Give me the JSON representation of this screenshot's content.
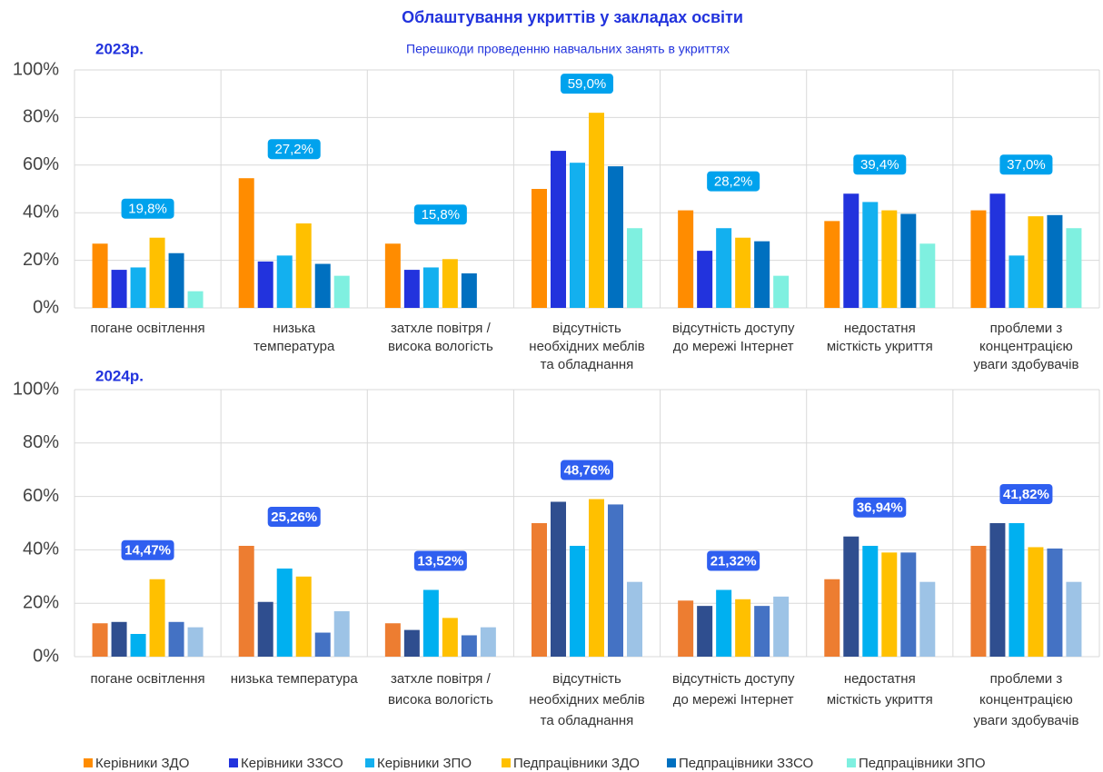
{
  "chart_data": [
    {
      "type": "bar",
      "title": "Облаштування укриттів у закладах освіти",
      "subtitle": "Перешкоди проведенню навчальних занять в укриттях",
      "label": "2023р.",
      "categories": [
        [
          "погане освітлення"
        ],
        [
          "низька",
          "температура"
        ],
        [
          "затхле повітря /",
          "висока вологість"
        ],
        [
          "відсутність",
          "необхідних меблів",
          "та обладнання"
        ],
        [
          "відсутність доступу",
          "до мережі Інтернет"
        ],
        [
          "недостатня",
          "місткість укриття"
        ],
        [
          "проблеми з",
          "концентрацією",
          "уваги здобувачів"
        ]
      ],
      "series": [
        {
          "name": "Керівники ЗДО",
          "color": "#ff8c00",
          "values": [
            27,
            54.5,
            27,
            50,
            41,
            36.5,
            41
          ]
        },
        {
          "name": "Керівники ЗЗСО",
          "color": "#2233dd",
          "values": [
            16,
            19.5,
            16,
            66,
            24,
            48,
            48
          ]
        },
        {
          "name": "Керівники ЗПО",
          "color": "#13b0ef",
          "values": [
            17,
            22,
            17,
            61,
            33.5,
            44.5,
            22
          ]
        },
        {
          "name": "Педпрацівники ЗДО",
          "color": "#ffc000",
          "values": [
            29.5,
            35.5,
            20.5,
            82,
            29.5,
            41,
            38.5
          ]
        },
        {
          "name": "Педпрацівники ЗЗСО",
          "color": "#0070c0",
          "values": [
            23,
            18.5,
            14.5,
            59.5,
            28,
            39.5,
            39
          ]
        },
        {
          "name": "Педпрацівники ЗПО",
          "color": "#7ff0e0",
          "values": [
            7,
            13.5,
            null,
            33.5,
            13.5,
            27,
            33.5
          ]
        }
      ],
      "averages": [
        19.8,
        27.2,
        15.8,
        59.0,
        28.2,
        39.4,
        37.0
      ],
      "average_labels": [
        "19,8%",
        "27,2%",
        "15,8%",
        "59,0%",
        "28,2%",
        "39,4%",
        "37,0%"
      ],
      "average_color": "#00a2ed",
      "ylim": [
        0,
        100
      ],
      "yticks": [
        {
          "value": 0,
          "label": "0%"
        },
        {
          "value": 20,
          "label": "20%"
        },
        {
          "value": 40,
          "label": "40%"
        },
        {
          "value": 60,
          "label": "60%"
        },
        {
          "value": 80,
          "label": "80%"
        },
        {
          "value": 100,
          "label": "100%"
        }
      ],
      "grid": true
    },
    {
      "type": "bar",
      "label": "2024р.",
      "categories": [
        [
          "погане освітлення"
        ],
        [
          "низька температура"
        ],
        [
          "затхле повітря /",
          "висока вологість"
        ],
        [
          "відсутність",
          "необхідних меблів",
          "та обладнання"
        ],
        [
          "відсутність доступу",
          "до мережі Інтернет"
        ],
        [
          "недостатня",
          "місткість укриття"
        ],
        [
          "проблеми з",
          "концентрацією",
          "уваги здобувачів"
        ]
      ],
      "series": [
        {
          "color": "#ed7d31",
          "values": [
            12.5,
            41.5,
            12.5,
            50,
            21,
            29,
            41.5
          ]
        },
        {
          "color": "#2f4e8f",
          "values": [
            13,
            20.5,
            10,
            58,
            19,
            45,
            50
          ]
        },
        {
          "color": "#00b0f0",
          "values": [
            8.5,
            33,
            25,
            41.5,
            25,
            41.5,
            50
          ]
        },
        {
          "color": "#ffc000",
          "values": [
            29,
            30,
            14.5,
            59,
            21.5,
            39,
            41
          ]
        },
        {
          "color": "#4472c4",
          "values": [
            13,
            9,
            8,
            57,
            19,
            39,
            40.5
          ]
        },
        {
          "color": "#9dc3e6",
          "values": [
            11,
            17,
            11,
            28,
            22.5,
            28,
            28
          ]
        }
      ],
      "averages": [
        14.47,
        25.26,
        13.52,
        48.76,
        21.32,
        36.94,
        41.82
      ],
      "average_labels": [
        "14,47%",
        "25,26%",
        "13,52%",
        "48,76%",
        "21,32%",
        "36,94%",
        "41,82%"
      ],
      "average_color": "#2f5ff0",
      "ylim": [
        0,
        100
      ],
      "yticks": [
        {
          "value": 0,
          "label": "0%"
        },
        {
          "value": 20,
          "label": "20%"
        },
        {
          "value": 40,
          "label": "40%"
        },
        {
          "value": 60,
          "label": "60%"
        },
        {
          "value": 80,
          "label": "80%"
        },
        {
          "value": 100,
          "label": "100%"
        }
      ],
      "grid": true
    }
  ]
}
